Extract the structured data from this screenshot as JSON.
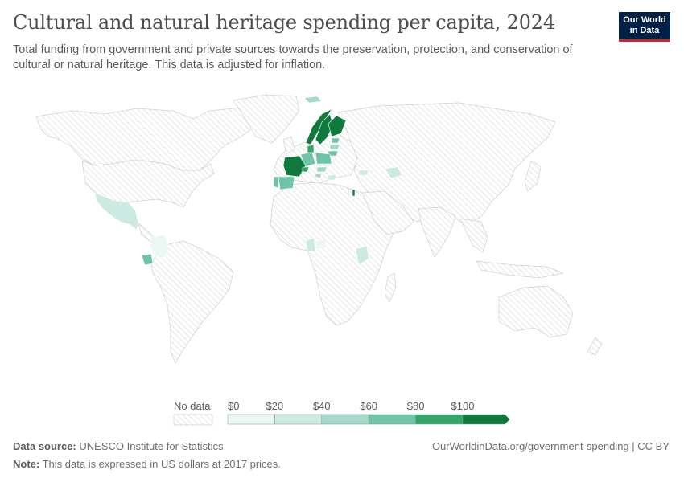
{
  "header": {
    "title": "Cultural and natural heritage spending per capita, 2024",
    "subtitle": "Total funding from government and private sources towards the preservation, protection, and conservation of cultural or natural heritage. This data is adjusted for inflation."
  },
  "logo": {
    "line1": "Our World",
    "line2": "in Data"
  },
  "legend": {
    "no_data_label": "No data",
    "ticks": [
      "$0",
      "$20",
      "$40",
      "$60",
      "$80",
      "$100"
    ],
    "colors": [
      "#ebf7f5",
      "#cbeae1",
      "#a2d9cb",
      "#6ec4a7",
      "#35a66a",
      "#0f7a3b"
    ],
    "no_data_color": "#f2f2f2"
  },
  "chart_data": {
    "type": "choropleth",
    "unit": "US dollars at 2017 prices",
    "bins": [
      [
        0,
        20
      ],
      [
        20,
        40
      ],
      [
        40,
        60
      ],
      [
        60,
        80
      ],
      [
        80,
        100
      ],
      [
        100,
        null
      ]
    ],
    "countries": [
      {
        "region": "Mexico",
        "bin": 1
      },
      {
        "region": "Colombia",
        "bin": 0
      },
      {
        "region": "Ecuador",
        "bin": 3
      },
      {
        "region": "Spain",
        "bin": 3
      },
      {
        "region": "Portugal",
        "bin": 3
      },
      {
        "region": "France",
        "bin": 5
      },
      {
        "region": "Switzerland",
        "bin": 4
      },
      {
        "region": "Norway",
        "bin": 5
      },
      {
        "region": "Sweden",
        "bin": 5
      },
      {
        "region": "Finland",
        "bin": 5
      },
      {
        "region": "Denmark",
        "bin": 4
      },
      {
        "region": "Iceland",
        "bin": 2
      },
      {
        "region": "Poland",
        "bin": 3
      },
      {
        "region": "Germany",
        "bin": 3
      },
      {
        "region": "Lithuania",
        "bin": 3
      },
      {
        "region": "Latvia",
        "bin": 2
      },
      {
        "region": "Estonia",
        "bin": 3
      },
      {
        "region": "Hungary",
        "bin": 2
      },
      {
        "region": "Croatia",
        "bin": 2
      },
      {
        "region": "Bulgaria",
        "bin": 1
      },
      {
        "region": "Georgia",
        "bin": 1
      },
      {
        "region": "Uzbekistan",
        "bin": 1
      },
      {
        "region": "Israel",
        "bin": 5
      },
      {
        "region": "Kenya",
        "bin": 1
      },
      {
        "region": "Cameroon",
        "bin": 1
      },
      {
        "region": "Central African Rep.",
        "bin": 0
      }
    ]
  },
  "footer": {
    "source_label": "Data source:",
    "source_text": "UNESCO Institute for Statistics",
    "note_label": "Note:",
    "note_text": "This data is expressed in US dollars at 2017 prices.",
    "credit": "OurWorldinData.org/government-spending | CC BY"
  }
}
